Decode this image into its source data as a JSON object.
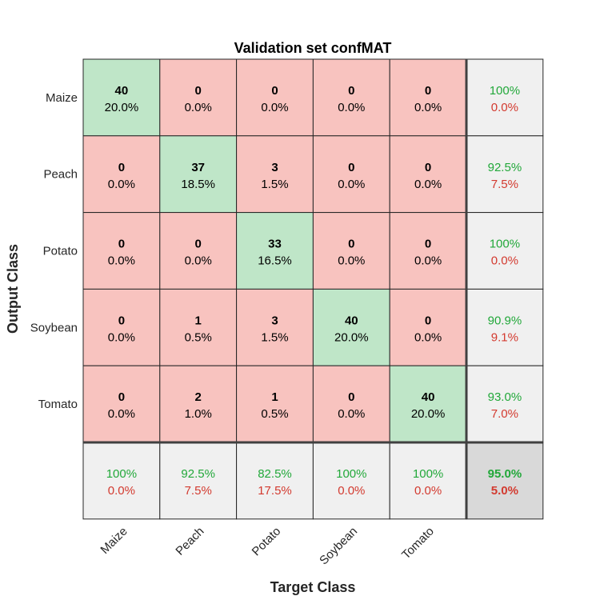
{
  "chart_data": {
    "type": "heatmap",
    "title": "Validation set confMAT",
    "xlabel": "Target Class",
    "ylabel": "Output Class",
    "classes": [
      "Maize",
      "Peach",
      "Potato",
      "Soybean",
      "Tomato"
    ],
    "matrix": [
      [
        40,
        0,
        0,
        0,
        0
      ],
      [
        0,
        37,
        3,
        0,
        0
      ],
      [
        0,
        0,
        33,
        0,
        0
      ],
      [
        0,
        1,
        3,
        40,
        0
      ],
      [
        0,
        2,
        1,
        0,
        40
      ]
    ],
    "cell_percent": [
      [
        "20.0%",
        "0.0%",
        "0.0%",
        "0.0%",
        "0.0%"
      ],
      [
        "0.0%",
        "18.5%",
        "1.5%",
        "0.0%",
        "0.0%"
      ],
      [
        "0.0%",
        "0.0%",
        "16.5%",
        "0.0%",
        "0.0%"
      ],
      [
        "0.0%",
        "0.5%",
        "1.5%",
        "20.0%",
        "0.0%"
      ],
      [
        "0.0%",
        "1.0%",
        "0.5%",
        "0.0%",
        "20.0%"
      ]
    ],
    "row_summary": [
      {
        "correct": "100%",
        "wrong": "0.0%"
      },
      {
        "correct": "92.5%",
        "wrong": "7.5%"
      },
      {
        "correct": "100%",
        "wrong": "0.0%"
      },
      {
        "correct": "90.9%",
        "wrong": "9.1%"
      },
      {
        "correct": "93.0%",
        "wrong": "7.0%"
      }
    ],
    "col_summary": [
      {
        "correct": "100%",
        "wrong": "0.0%"
      },
      {
        "correct": "92.5%",
        "wrong": "7.5%"
      },
      {
        "correct": "82.5%",
        "wrong": "17.5%"
      },
      {
        "correct": "100%",
        "wrong": "0.0%"
      },
      {
        "correct": "100%",
        "wrong": "0.0%"
      }
    ],
    "total": {
      "correct": "95.0%",
      "wrong": "5.0%"
    }
  },
  "colors": {
    "diagonal": "#bfe6c8",
    "off_diagonal": "#f8c3bf",
    "summary": "#f0f0f0",
    "total": "#d9d9d9",
    "good_text": "#22a83a",
    "bad_text": "#d33a2f"
  }
}
